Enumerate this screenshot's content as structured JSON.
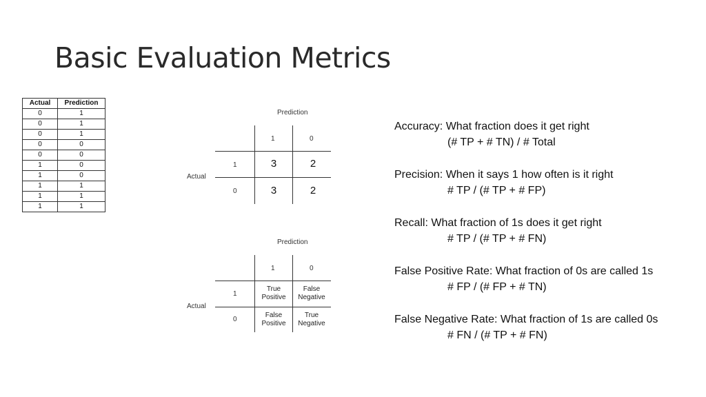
{
  "slide": {
    "title": "Basic Evaluation Metrics"
  },
  "data_table": {
    "headers": [
      "Actual",
      "Prediction"
    ],
    "rows": [
      [
        "0",
        "1"
      ],
      [
        "0",
        "1"
      ],
      [
        "0",
        "1"
      ],
      [
        "0",
        "0"
      ],
      [
        "0",
        "0"
      ],
      [
        "1",
        "0"
      ],
      [
        "1",
        "0"
      ],
      [
        "1",
        "1"
      ],
      [
        "1",
        "1"
      ],
      [
        "1",
        "1"
      ]
    ]
  },
  "matrix_counts": {
    "prediction_label": "Prediction",
    "actual_label": "Actual",
    "col_labels": [
      "1",
      "0"
    ],
    "row_labels": [
      "1",
      "0"
    ],
    "cells": [
      [
        "3",
        "2"
      ],
      [
        "3",
        "2"
      ]
    ]
  },
  "matrix_names": {
    "prediction_label": "Prediction",
    "actual_label": "Actual",
    "col_labels": [
      "1",
      "0"
    ],
    "row_labels": [
      "1",
      "0"
    ],
    "cells": [
      [
        {
          "l1": "True",
          "l2": "Positive"
        },
        {
          "l1": "False",
          "l2": "Negative"
        }
      ],
      [
        {
          "l1": "False",
          "l2": "Positive"
        },
        {
          "l1": "True",
          "l2": "Negative"
        }
      ]
    ]
  },
  "metrics": [
    {
      "title": "Accuracy: What fraction does it get right",
      "formula": "(# TP + # TN) / # Total"
    },
    {
      "title": "Precision: When it says 1 how often is it right",
      "formula": "# TP / (# TP + # FP)"
    },
    {
      "title": "Recall: What fraction of 1s does it get right",
      "formula": "# TP / (# TP + # FN)"
    },
    {
      "title": "False Positive Rate: What fraction of 0s are called 1s",
      "formula": "# FP / (# FP + # TN)"
    },
    {
      "title": "False Negative Rate: What fraction of 1s are called 0s",
      "formula": "# FN / (# TP + # FN)"
    }
  ]
}
